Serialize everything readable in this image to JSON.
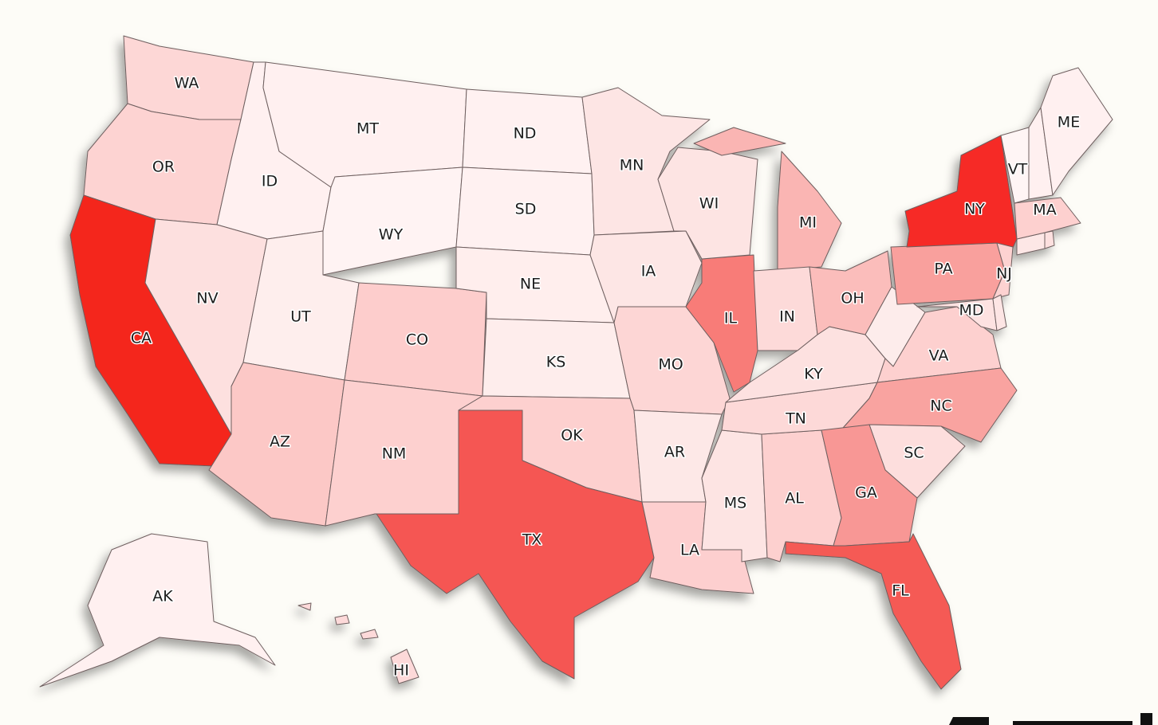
{
  "map": {
    "states": [
      {
        "label": "WA",
        "color": "#fdd7d6"
      },
      {
        "label": "OR",
        "color": "#fdd3d2"
      },
      {
        "label": "CA",
        "color": "#f4251d"
      },
      {
        "label": "ID",
        "color": "#fff0f0"
      },
      {
        "label": "NV",
        "color": "#fde0df"
      },
      {
        "label": "MT",
        "color": "#fff0f0"
      },
      {
        "label": "WY",
        "color": "#fff3f3"
      },
      {
        "label": "UT",
        "color": "#feeeed"
      },
      {
        "label": "AZ",
        "color": "#fcc8c6"
      },
      {
        "label": "CO",
        "color": "#fdcdcc"
      },
      {
        "label": "NM",
        "color": "#fdd0cf"
      },
      {
        "label": "ND",
        "color": "#fff1f1"
      },
      {
        "label": "SD",
        "color": "#fff1f1"
      },
      {
        "label": "NE",
        "color": "#ffeeed"
      },
      {
        "label": "KS",
        "color": "#feedec"
      },
      {
        "label": "OK",
        "color": "#fdd0cf"
      },
      {
        "label": "TX",
        "color": "#f55753"
      },
      {
        "label": "MN",
        "color": "#fde5e4"
      },
      {
        "label": "IA",
        "color": "#fde6e5"
      },
      {
        "label": "MO",
        "color": "#fdd6d5"
      },
      {
        "label": "AR",
        "color": "#fde8e7"
      },
      {
        "label": "LA",
        "color": "#fdcfcf"
      },
      {
        "label": "MS",
        "color": "#fde4e3"
      },
      {
        "label": "AL",
        "color": "#fdd0cf"
      },
      {
        "label": "TN",
        "color": "#fdd9d8"
      },
      {
        "label": "KY",
        "color": "#fde1e0"
      },
      {
        "label": "IL",
        "color": "#f87c78"
      },
      {
        "label": "WI",
        "color": "#fde4e3"
      },
      {
        "label": "MI",
        "color": "#fab5b3"
      },
      {
        "label": "IN",
        "color": "#fddad9"
      },
      {
        "label": "OH",
        "color": "#fbbdbb"
      },
      {
        "label": null,
        "color": "#fdeceb"
      },
      {
        "label": "VA",
        "color": "#fdd0cf"
      },
      {
        "label": "NC",
        "color": "#f9a3a0"
      },
      {
        "label": "SC",
        "color": "#fddedd"
      },
      {
        "label": "GA",
        "color": "#f89795"
      },
      {
        "label": "FL",
        "color": "#f55a54"
      },
      {
        "label": "PA",
        "color": "#f9a09d"
      },
      {
        "label": "NY",
        "color": "#f62a25"
      },
      {
        "label": "NJ",
        "color": "#fdd2d1"
      },
      {
        "label": "MD",
        "color": "#fde2e1"
      },
      {
        "label": null,
        "color": "#fde5e4"
      },
      {
        "label": null,
        "color": "#fde7e6"
      },
      {
        "label": null,
        "color": "#fde0df"
      },
      {
        "label": "MA",
        "color": "#fdd0cf"
      },
      {
        "label": "VT",
        "color": "#fff5f5"
      },
      {
        "label": null,
        "color": "#fff0f0"
      },
      {
        "label": "ME",
        "color": "#fff0f0"
      },
      {
        "label": "AK",
        "color": "#fff0f0"
      },
      {
        "label": "HI",
        "color": "#fdd9d9"
      }
    ]
  }
}
